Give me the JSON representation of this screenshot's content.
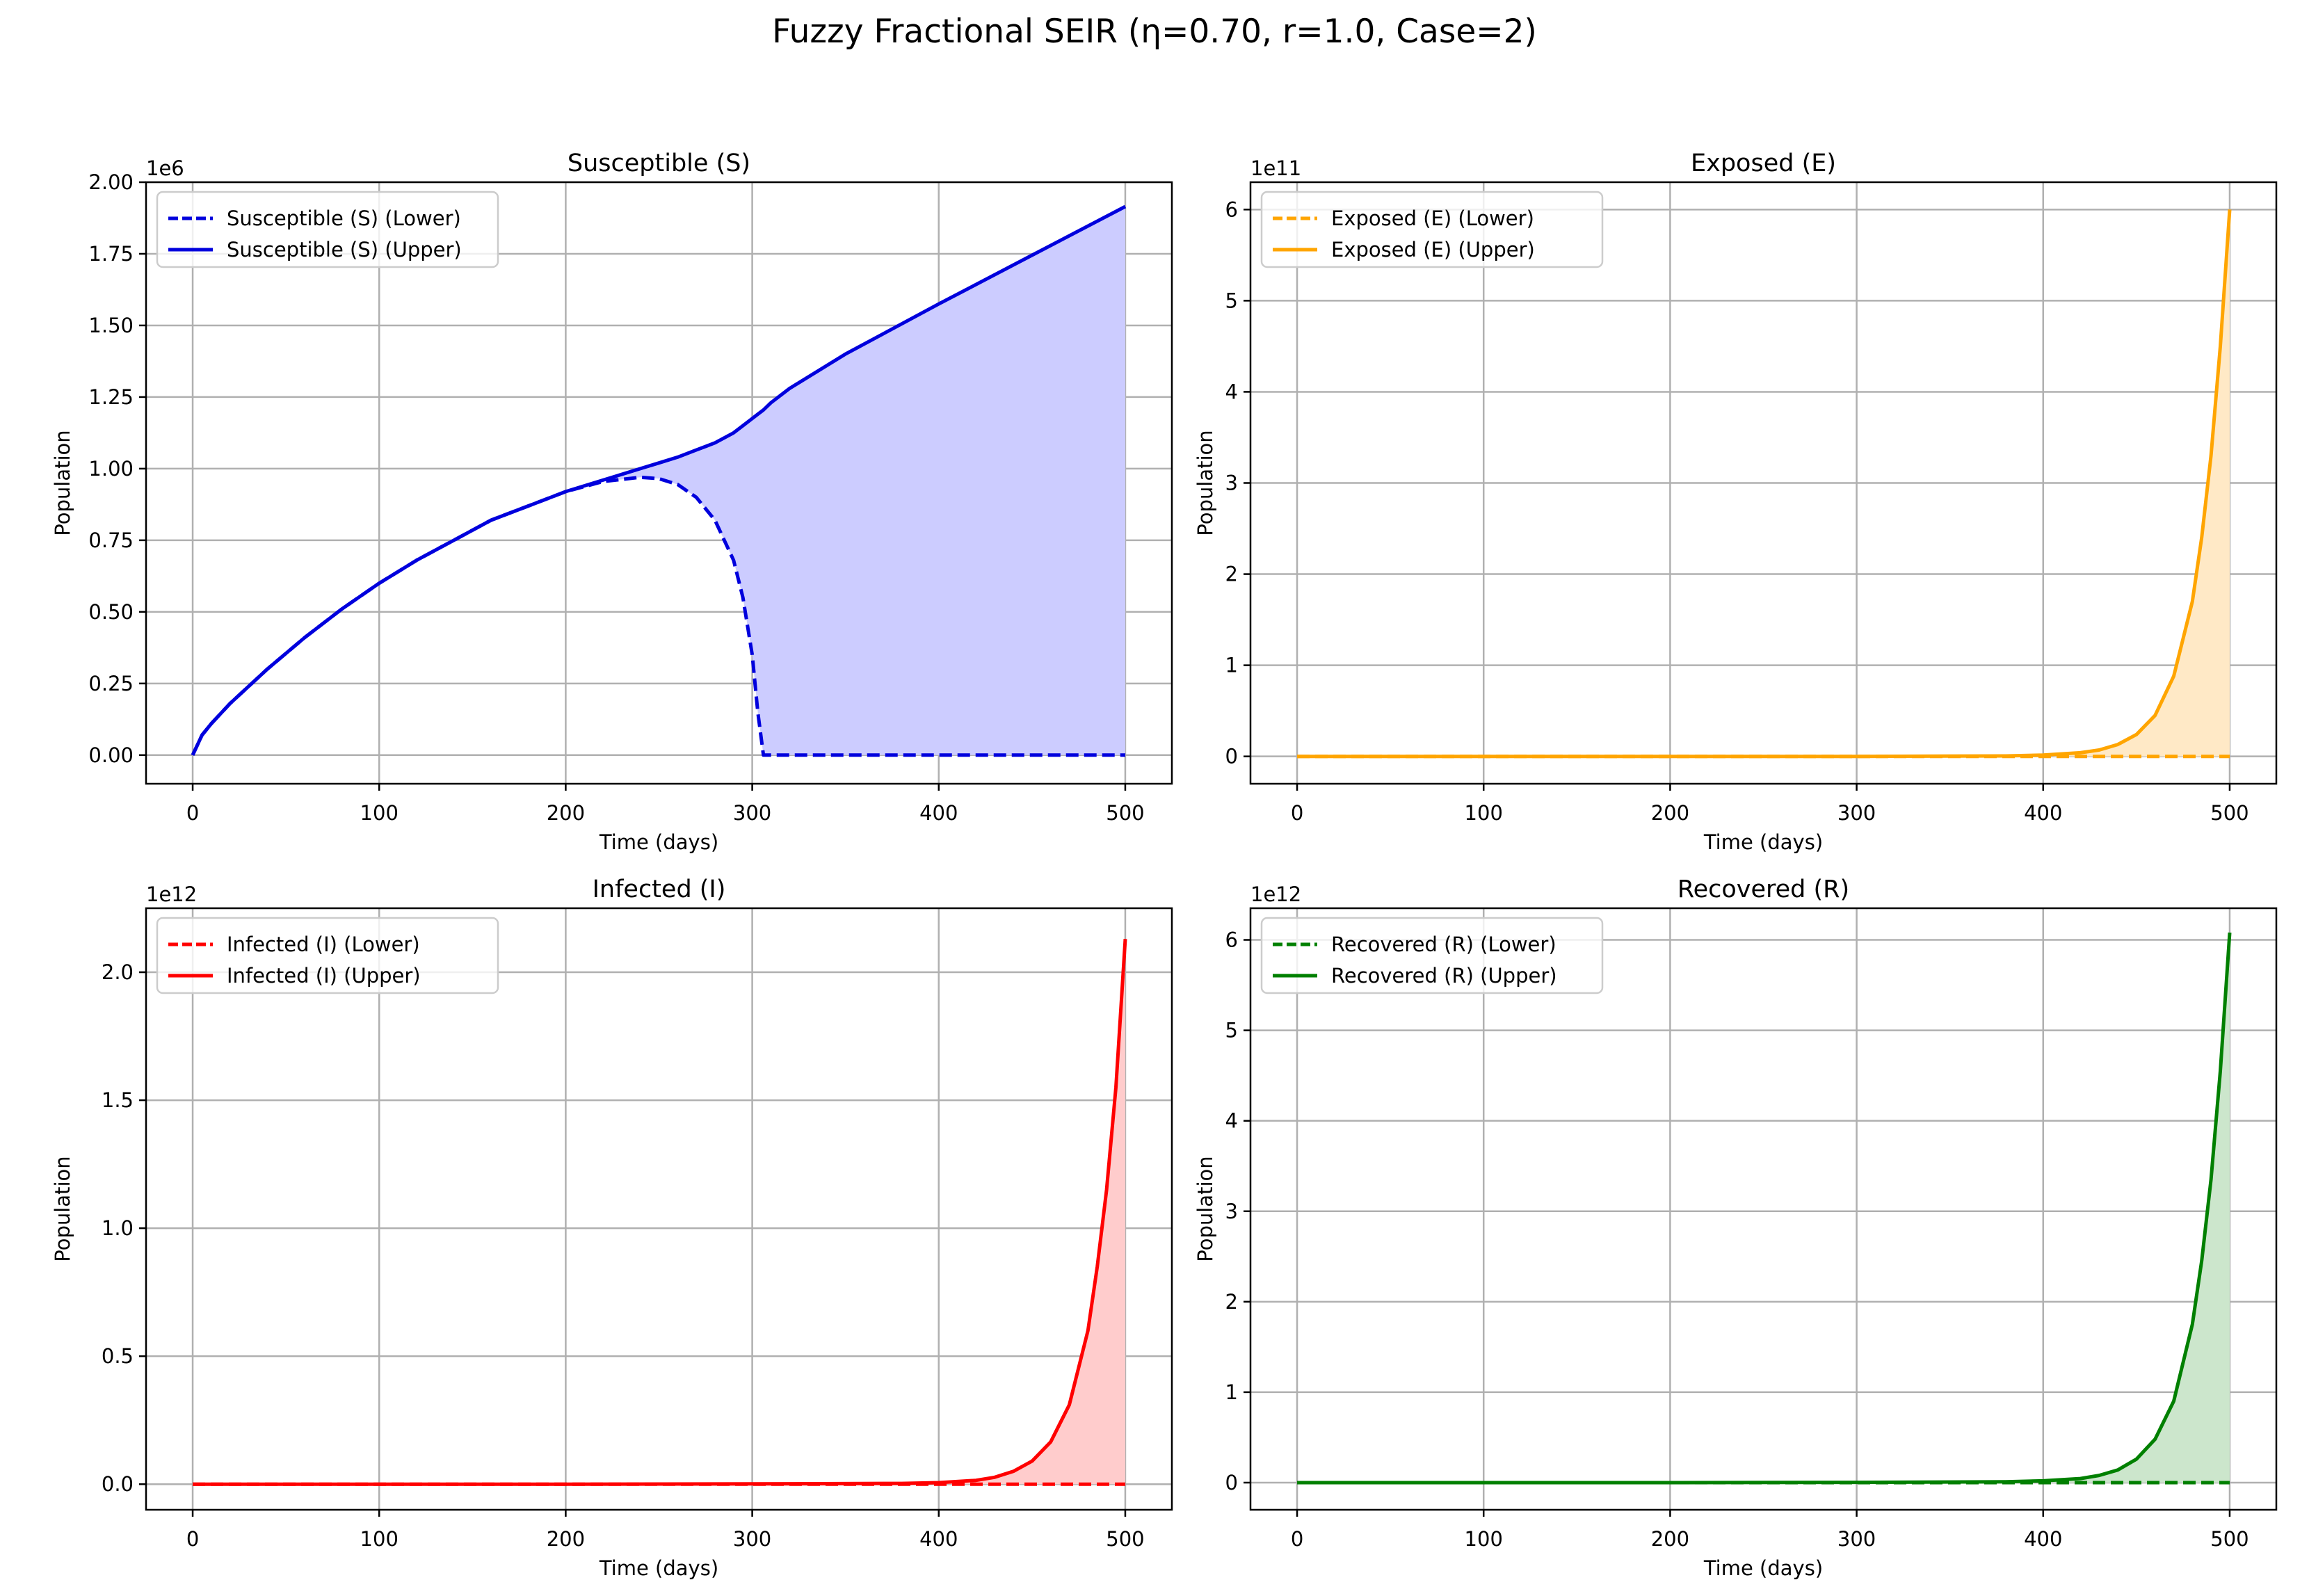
{
  "figure": {
    "title": "Fuzzy Fractional SEIR (η=0.70, r=1.0, Case=2)"
  },
  "chart_data": [
    {
      "type": "line",
      "title": "Susceptible (S)",
      "xlabel": "Time (days)",
      "ylabel": "Population",
      "offset_text": "1e6",
      "scale": 1000000,
      "xlim": [
        -25,
        525
      ],
      "ylim": [
        -0.1,
        2.0
      ],
      "xticks": [
        0,
        100,
        200,
        300,
        400,
        500
      ],
      "xtick_labels": [
        "0",
        "100",
        "200",
        "300",
        "400",
        "500"
      ],
      "yticks": [
        0,
        0.25,
        0.5,
        0.75,
        1.0,
        1.25,
        1.5,
        1.75,
        2.0
      ],
      "ytick_labels": [
        "0.00",
        "0.25",
        "0.50",
        "0.75",
        "1.00",
        "1.25",
        "1.50",
        "1.75",
        "2.00"
      ],
      "grid": true,
      "legend_position": "upper-left",
      "color": "#0000dd",
      "fill_color": "#ccccff",
      "x": [
        0,
        5,
        10,
        20,
        40,
        60,
        80,
        100,
        120,
        140,
        160,
        180,
        200,
        220,
        240,
        250,
        260,
        270,
        280,
        290,
        295,
        300,
        303,
        306,
        310,
        320,
        350,
        400,
        450,
        500
      ],
      "series": [
        {
          "name": "Susceptible (S) (Lower)",
          "style": "dashed",
          "values": [
            0,
            0.07,
            0.11,
            0.18,
            0.3,
            0.41,
            0.51,
            0.6,
            0.68,
            0.75,
            0.82,
            0.87,
            0.92,
            0.955,
            0.97,
            0.965,
            0.945,
            0.9,
            0.82,
            0.68,
            0.55,
            0.35,
            0.15,
            0.0,
            0,
            0,
            0,
            0,
            0,
            0
          ]
        },
        {
          "name": "Susceptible (S) (Upper)",
          "style": "solid",
          "values": [
            0,
            0.07,
            0.11,
            0.18,
            0.3,
            0.41,
            0.51,
            0.6,
            0.68,
            0.75,
            0.82,
            0.87,
            0.92,
            0.96,
            1.0,
            1.02,
            1.04,
            1.065,
            1.09,
            1.125,
            1.15,
            1.175,
            1.19,
            1.205,
            1.23,
            1.28,
            1.4,
            1.575,
            1.745,
            1.915
          ]
        }
      ]
    },
    {
      "type": "line",
      "title": "Exposed (E)",
      "xlabel": "Time (days)",
      "ylabel": "Population",
      "offset_text": "1e11",
      "scale": 100000000000,
      "xlim": [
        -25,
        525
      ],
      "ylim": [
        -0.3,
        6.3
      ],
      "xticks": [
        0,
        100,
        200,
        300,
        400,
        500
      ],
      "xtick_labels": [
        "0",
        "100",
        "200",
        "300",
        "400",
        "500"
      ],
      "yticks": [
        0,
        1,
        2,
        3,
        4,
        5,
        6
      ],
      "ytick_labels": [
        "0",
        "1",
        "2",
        "3",
        "4",
        "5",
        "6"
      ],
      "grid": true,
      "legend_position": "upper-left",
      "color": "#ffa500",
      "fill_color": "#ffe9c6",
      "x": [
        0,
        100,
        200,
        300,
        380,
        400,
        420,
        430,
        440,
        450,
        460,
        470,
        480,
        485,
        490,
        495,
        500
      ],
      "series": [
        {
          "name": "Exposed (E) (Lower)",
          "style": "dashed",
          "values": [
            0,
            0,
            0,
            0,
            0,
            0,
            0,
            0,
            0,
            0,
            0,
            0,
            0,
            0,
            0,
            0,
            0
          ]
        },
        {
          "name": "Exposed (E) (Upper)",
          "style": "solid",
          "values": [
            0,
            0,
            0,
            0,
            0.005,
            0.015,
            0.04,
            0.07,
            0.13,
            0.24,
            0.45,
            0.88,
            1.7,
            2.4,
            3.3,
            4.5,
            6.0
          ]
        }
      ]
    },
    {
      "type": "line",
      "title": "Infected (I)",
      "xlabel": "Time (days)",
      "ylabel": "Population",
      "offset_text": "1e12",
      "scale": 1000000000000,
      "xlim": [
        -25,
        525
      ],
      "ylim": [
        -0.1,
        2.25
      ],
      "xticks": [
        0,
        100,
        200,
        300,
        400,
        500
      ],
      "xtick_labels": [
        "0",
        "100",
        "200",
        "300",
        "400",
        "500"
      ],
      "yticks": [
        0,
        0.5,
        1.0,
        1.5,
        2.0
      ],
      "ytick_labels": [
        "0.0",
        "0.5",
        "1.0",
        "1.5",
        "2.0"
      ],
      "grid": true,
      "legend_position": "upper-left",
      "color": "#ff0000",
      "fill_color": "#ffcccc",
      "x": [
        0,
        100,
        200,
        300,
        380,
        400,
        420,
        430,
        440,
        450,
        460,
        470,
        480,
        485,
        490,
        495,
        500
      ],
      "series": [
        {
          "name": "Infected (I) (Lower)",
          "style": "dashed",
          "values": [
            0,
            0,
            0,
            0,
            0,
            0,
            0,
            0,
            0,
            0,
            0,
            0,
            0,
            0,
            0,
            0,
            0
          ]
        },
        {
          "name": "Infected (I) (Upper)",
          "style": "solid",
          "values": [
            0,
            0,
            0,
            0.001,
            0.003,
            0.006,
            0.015,
            0.027,
            0.05,
            0.09,
            0.165,
            0.31,
            0.6,
            0.85,
            1.15,
            1.55,
            2.13
          ]
        }
      ]
    },
    {
      "type": "line",
      "title": "Recovered (R)",
      "xlabel": "Time (days)",
      "ylabel": "Population",
      "offset_text": "1e12",
      "scale": 1000000000000,
      "xlim": [
        -25,
        525
      ],
      "ylim": [
        -0.3,
        6.35
      ],
      "xticks": [
        0,
        100,
        200,
        300,
        400,
        500
      ],
      "xtick_labels": [
        "0",
        "100",
        "200",
        "300",
        "400",
        "500"
      ],
      "yticks": [
        0,
        1,
        2,
        3,
        4,
        5,
        6
      ],
      "ytick_labels": [
        "0",
        "1",
        "2",
        "3",
        "4",
        "5",
        "6"
      ],
      "grid": true,
      "legend_position": "upper-left",
      "color": "#008000",
      "fill_color": "#cce6cc",
      "x": [
        0,
        100,
        200,
        300,
        380,
        400,
        420,
        430,
        440,
        450,
        460,
        470,
        480,
        485,
        490,
        495,
        500
      ],
      "series": [
        {
          "name": "Recovered (R) (Lower)",
          "style": "dashed",
          "values": [
            0,
            0,
            0,
            0,
            0,
            0,
            0,
            0,
            0,
            0,
            0,
            0,
            0,
            0,
            0,
            0,
            0
          ]
        },
        {
          "name": "Recovered (R) (Upper)",
          "style": "solid",
          "values": [
            0,
            0,
            0,
            0.003,
            0.01,
            0.02,
            0.045,
            0.08,
            0.14,
            0.26,
            0.48,
            0.9,
            1.75,
            2.45,
            3.35,
            4.55,
            6.08
          ]
        }
      ]
    }
  ]
}
